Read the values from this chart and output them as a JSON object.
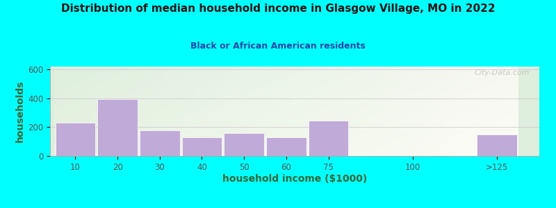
{
  "title": "Distribution of median household income in Glasgow Village, MO in 2022",
  "subtitle": "Black or African American residents",
  "xlabel": "household income ($1000)",
  "ylabel": "households",
  "background_outer": "#00FFFF",
  "bg_color_topleft": "#ddeedd",
  "bg_color_topright": "#f5f5f0",
  "bg_color_bottomleft": "#e8f0e0",
  "bg_color_bottomright": "#ffffff",
  "bar_color": "#c0aad8",
  "bar_edgecolor": "#ffffff",
  "title_color": "#111111",
  "subtitle_color": "#1144aa",
  "axis_label_color": "#336633",
  "tick_label_color": "#555555",
  "grid_color": "#cccccc",
  "categories": [
    "10",
    "20",
    "30",
    "40",
    "50",
    "60",
    "75",
    "100",
    ">125"
  ],
  "values": [
    230,
    395,
    178,
    128,
    160,
    128,
    245,
    0,
    148
  ],
  "x_positions": [
    0,
    1,
    2,
    3,
    4,
    5,
    6,
    8,
    10
  ],
  "bar_width": 0.95,
  "ylim": [
    0,
    620
  ],
  "yticks": [
    0,
    200,
    400,
    600
  ],
  "watermark": "City-Data.com"
}
